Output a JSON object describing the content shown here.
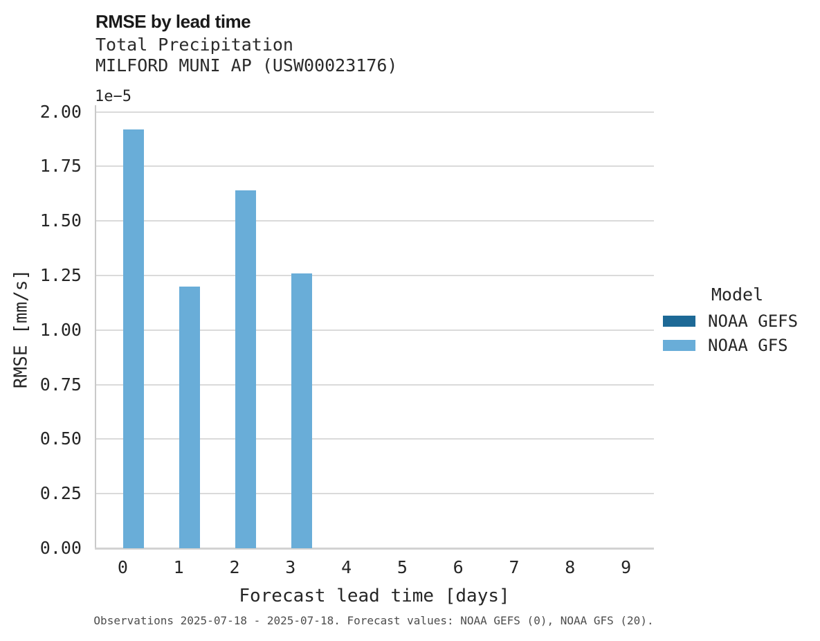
{
  "header": {
    "title": "RMSE by lead time",
    "subtitle_line1": "Total Precipitation",
    "subtitle_line2": "MILFORD MUNI AP (USW00023176)"
  },
  "chart_data": {
    "type": "bar",
    "title": "RMSE by lead time",
    "subtitle": "Total Precipitation, MILFORD MUNI AP (USW00023176)",
    "xlabel": "Forecast lead time [days]",
    "ylabel": "RMSE [mm/s]",
    "y_offset_label": "1e−5",
    "unit_scale": "1e-5",
    "categories": [
      "0",
      "1",
      "2",
      "3",
      "4",
      "5",
      "6",
      "7",
      "8",
      "9"
    ],
    "ylim_x1e5": [
      0,
      2.0
    ],
    "ytick_labels": [
      "0.00",
      "0.25",
      "0.50",
      "0.75",
      "1.00",
      "1.25",
      "1.50",
      "1.75",
      "2.00"
    ],
    "ytick_values_x1e5": [
      0,
      0.25,
      0.5,
      0.75,
      1.0,
      1.25,
      1.5,
      1.75,
      2.0
    ],
    "grid": "horizontal",
    "legend_position": "right",
    "legend_title": "Model",
    "series": [
      {
        "name": "NOAA GEFS",
        "color": "#1d6996",
        "values_x1e5": [
          0,
          0,
          0,
          0,
          0,
          0,
          0,
          0,
          0,
          0
        ]
      },
      {
        "name": "NOAA GFS",
        "color": "#69add8",
        "values_x1e5": [
          1.92,
          1.2,
          1.64,
          1.26,
          0,
          0,
          0,
          0,
          0,
          0
        ]
      }
    ]
  },
  "caption": "Observations 2025-07-18 - 2025-07-18. Forecast values: NOAA GEFS (0), NOAA GFS (20).",
  "colors": {
    "noaa_gefs": "#1d6996",
    "noaa_gfs": "#69add8",
    "gridline": "#dadada",
    "spine": "#c9c9c9",
    "text_dark": "#262626",
    "caption_gray": "#4d4d4d"
  }
}
